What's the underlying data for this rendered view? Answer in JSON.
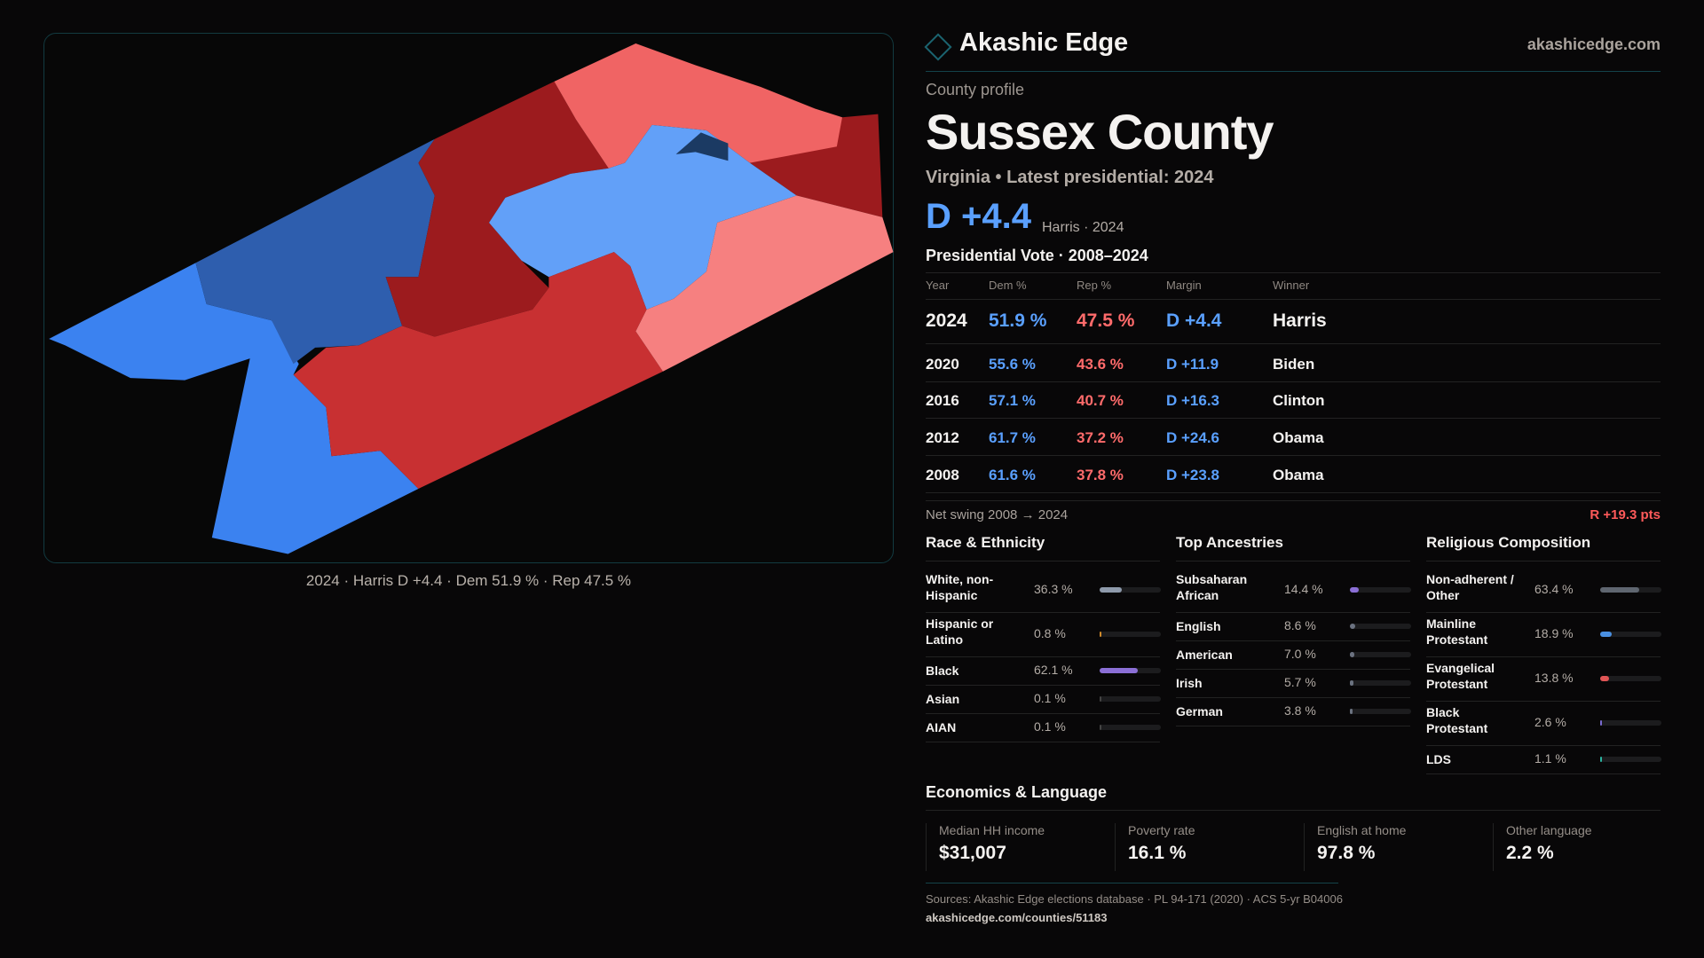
{
  "brand": {
    "name": "Akashic Edge",
    "site": "akashicedge.com",
    "icon": "diamond-icon"
  },
  "profile": {
    "eyebrow": "County profile",
    "title": "Sussex County",
    "subtitle": "Virginia • Latest presidential: 2024",
    "margin": "D +4.4",
    "margin_sub": "Harris · 2024"
  },
  "map": {
    "caption": "2024 · Harris D +4.4 · Dem 51.9 % · Rep 47.5 %",
    "colors": {
      "strong_d": "#3b82f0",
      "lean_d": "#2e5eae",
      "light_d": "#62a0f8",
      "strong_r": "#9c1b1e",
      "mid_r": "#c83032",
      "light_r": "#f06464",
      "lean_r": "#f68080",
      "navy": "#1b3a63"
    }
  },
  "pres": {
    "title": "Presidential Vote · 2008–2024",
    "headers": [
      "Year",
      "Dem %",
      "Rep %",
      "Margin",
      "Winner"
    ],
    "rows": [
      [
        "2024",
        "51.9 %",
        "47.5 %",
        "D +4.4",
        "Harris"
      ],
      [
        "2020",
        "55.6 %",
        "43.6 %",
        "D +11.9",
        "Biden"
      ],
      [
        "2016",
        "57.1 %",
        "40.7 %",
        "D +16.3",
        "Clinton"
      ],
      [
        "2012",
        "61.7 %",
        "37.2 %",
        "D +24.6",
        "Obama"
      ],
      [
        "2008",
        "61.6 %",
        "37.8 %",
        "D +23.8",
        "Obama"
      ]
    ],
    "swing_label": "Net swing 2008 → 2024",
    "swing_value": "R +19.3 pts"
  },
  "demo": [
    {
      "title": "Race & Ethnicity",
      "items": [
        [
          "White, non-Hispanic",
          "36.3 %",
          36.3,
          "#8e9aab"
        ],
        [
          "Hispanic or Latino",
          "0.8 %",
          0.8,
          "#d08a2a"
        ],
        [
          "Black",
          "62.1 %",
          62.1,
          "#8b6fd6"
        ],
        [
          "Asian",
          "0.1 %",
          0.1,
          "#444"
        ],
        [
          "AIAN",
          "0.1 %",
          0.1,
          "#444"
        ]
      ]
    },
    {
      "title": "Top Ancestries",
      "items": [
        [
          "Subsaharan African",
          "14.4 %",
          14.4,
          "#8b6fd6"
        ],
        [
          "English",
          "8.6 %",
          8.6,
          "#6b7280"
        ],
        [
          "American",
          "7.0 %",
          7.0,
          "#6b7280"
        ],
        [
          "Irish",
          "5.7 %",
          5.7,
          "#6b7280"
        ],
        [
          "German",
          "3.8 %",
          3.8,
          "#6b7280"
        ]
      ]
    },
    {
      "title": "Religious Composition",
      "items": [
        [
          "Non-adherent / Other",
          "63.4 %",
          63.4,
          "#5f6670"
        ],
        [
          "Mainline Protestant",
          "18.9 %",
          18.9,
          "#4a90e2"
        ],
        [
          "Evangelical Protestant",
          "13.8 %",
          13.8,
          "#e05555"
        ],
        [
          "Black Protestant",
          "2.6 %",
          2.6,
          "#7a6ad0"
        ],
        [
          "LDS",
          "1.1 %",
          1.1,
          "#2bb3a0"
        ]
      ]
    }
  ],
  "econ": {
    "title": "Economics & Language",
    "cards": [
      [
        "Median HH income",
        "$31,007"
      ],
      [
        "Poverty rate",
        "16.1 %"
      ],
      [
        "English at home",
        "97.8 %"
      ],
      [
        "Other language",
        "2.2 %"
      ]
    ]
  },
  "footer": {
    "sources": "Sources: Akashic Edge elections database · PL 94-171 (2020) · ACS 5-yr B04006",
    "url": "akashicedge.com/counties/51183"
  }
}
